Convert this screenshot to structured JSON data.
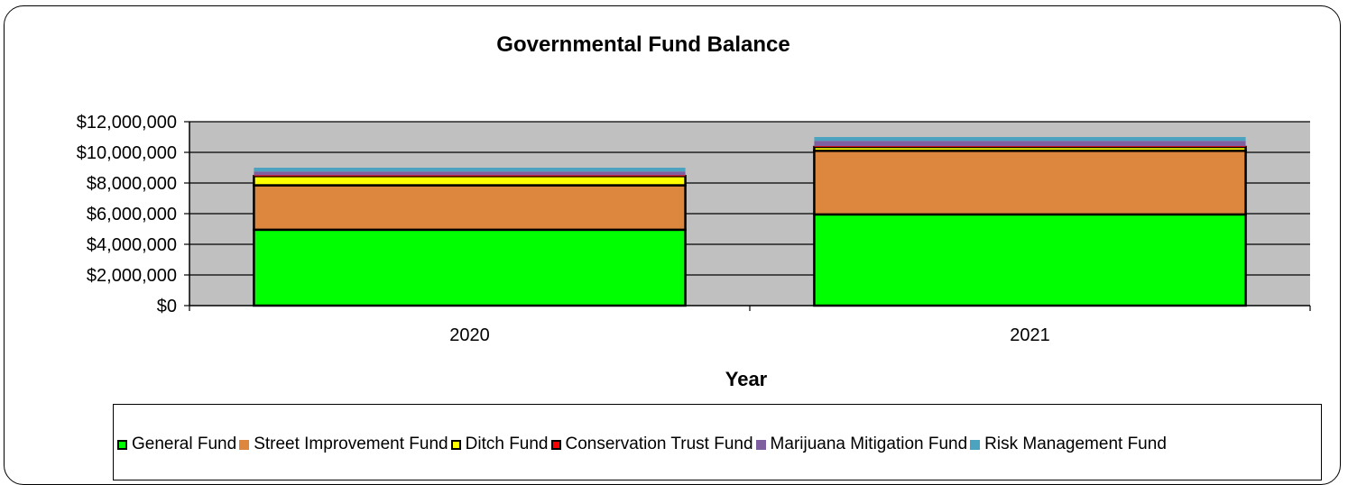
{
  "chart_data": {
    "type": "bar",
    "stacked": true,
    "title": "Governmental Fund Balance",
    "xlabel": "Year",
    "ylabel": "",
    "categories": [
      "2020",
      "2021"
    ],
    "ylim": [
      0,
      12000000
    ],
    "yticks": [
      0,
      2000000,
      4000000,
      6000000,
      8000000,
      10000000,
      12000000
    ],
    "ytick_labels": [
      "$0",
      "$2,000,000",
      "$4,000,000",
      "$6,000,000",
      "$8,000,000",
      "$10,000,000",
      "$12,000,000"
    ],
    "grid": true,
    "legend_position": "bottom",
    "series": [
      {
        "name": "General Fund",
        "values": [
          4950000,
          5950000
        ],
        "color": "#00ff00"
      },
      {
        "name": "Street Improvement Fund",
        "values": [
          2900000,
          4150000
        ],
        "color": "#dd873e"
      },
      {
        "name": "Ditch Fund",
        "values": [
          600000,
          250000
        ],
        "color": "#ffff00"
      },
      {
        "name": "Conservation Trust Fund",
        "values": [
          50000,
          50000
        ],
        "color": "#ff0000"
      },
      {
        "name": "Marijuana Mitigation Fund",
        "values": [
          250000,
          350000
        ],
        "color": "#7f5f9f"
      },
      {
        "name": "Risk Management Fund",
        "values": [
          250000,
          250000
        ],
        "color": "#4ba3bf"
      }
    ]
  }
}
